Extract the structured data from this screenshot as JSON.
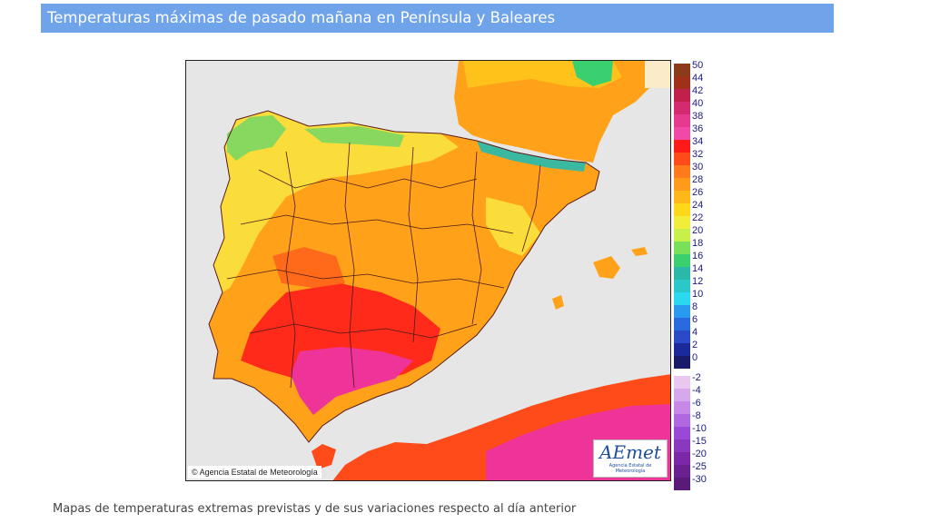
{
  "header": {
    "title": "Temperaturas máximas de pasado mañana en Península y Baleares"
  },
  "map": {
    "copyright": "© Agencia Estatal de Meteorología",
    "logo_text": "AEmet",
    "logo_subtitle": "Agencia Estatal de Meteorología",
    "colors": {
      "sea": "#e6e6e6",
      "land_base": "#ffa21a",
      "hot": "#ff2a1a",
      "very_hot": "#ee3399",
      "mild": "#fadc3a",
      "cool": "#88d860",
      "cold": "#3ab8a0",
      "border": "#5a1a1a"
    }
  },
  "legend": {
    "positive": [
      {
        "label": "50",
        "color": "#8b3a1a"
      },
      {
        "label": "44",
        "color": "#a0301a"
      },
      {
        "label": "42",
        "color": "#c0204a"
      },
      {
        "label": "40",
        "color": "#d42a70"
      },
      {
        "label": "38",
        "color": "#e63a90"
      },
      {
        "label": "36",
        "color": "#f04aa8"
      },
      {
        "label": "34",
        "color": "#ff1a1a"
      },
      {
        "label": "32",
        "color": "#ff4a1a"
      },
      {
        "label": "30",
        "color": "#ff7a1a"
      },
      {
        "label": "28",
        "color": "#ff9a1a"
      },
      {
        "label": "26",
        "color": "#ffb81a"
      },
      {
        "label": "24",
        "color": "#ffd81a"
      },
      {
        "label": "22",
        "color": "#f0ee3a"
      },
      {
        "label": "20",
        "color": "#c8f04a"
      },
      {
        "label": "18",
        "color": "#7ae05a"
      },
      {
        "label": "16",
        "color": "#3ad070"
      },
      {
        "label": "14",
        "color": "#2ab8a8"
      },
      {
        "label": "12",
        "color": "#2ac8c8"
      },
      {
        "label": "10",
        "color": "#2ad8f0"
      },
      {
        "label": "8",
        "color": "#2a9af0"
      },
      {
        "label": "6",
        "color": "#2a6ae0"
      },
      {
        "label": "4",
        "color": "#2a4ac8"
      },
      {
        "label": "2",
        "color": "#1a2a9a"
      },
      {
        "label": "0",
        "color": "#1a1a6a"
      }
    ],
    "negative": [
      {
        "label": "-2",
        "color": "#e8c8f0"
      },
      {
        "label": "-4",
        "color": "#d8a8ec"
      },
      {
        "label": "-6",
        "color": "#c888e8"
      },
      {
        "label": "-8",
        "color": "#b068e0"
      },
      {
        "label": "-10",
        "color": "#9a48d8"
      },
      {
        "label": "-15",
        "color": "#8a38c0"
      },
      {
        "label": "-20",
        "color": "#7a28a8"
      },
      {
        "label": "-25",
        "color": "#6a2090"
      },
      {
        "label": "-30",
        "color": "#5a1a78"
      }
    ]
  },
  "footer": {
    "caption": "Mapas de temperaturas extremas previstas y de sus variaciones respecto al día anterior"
  }
}
